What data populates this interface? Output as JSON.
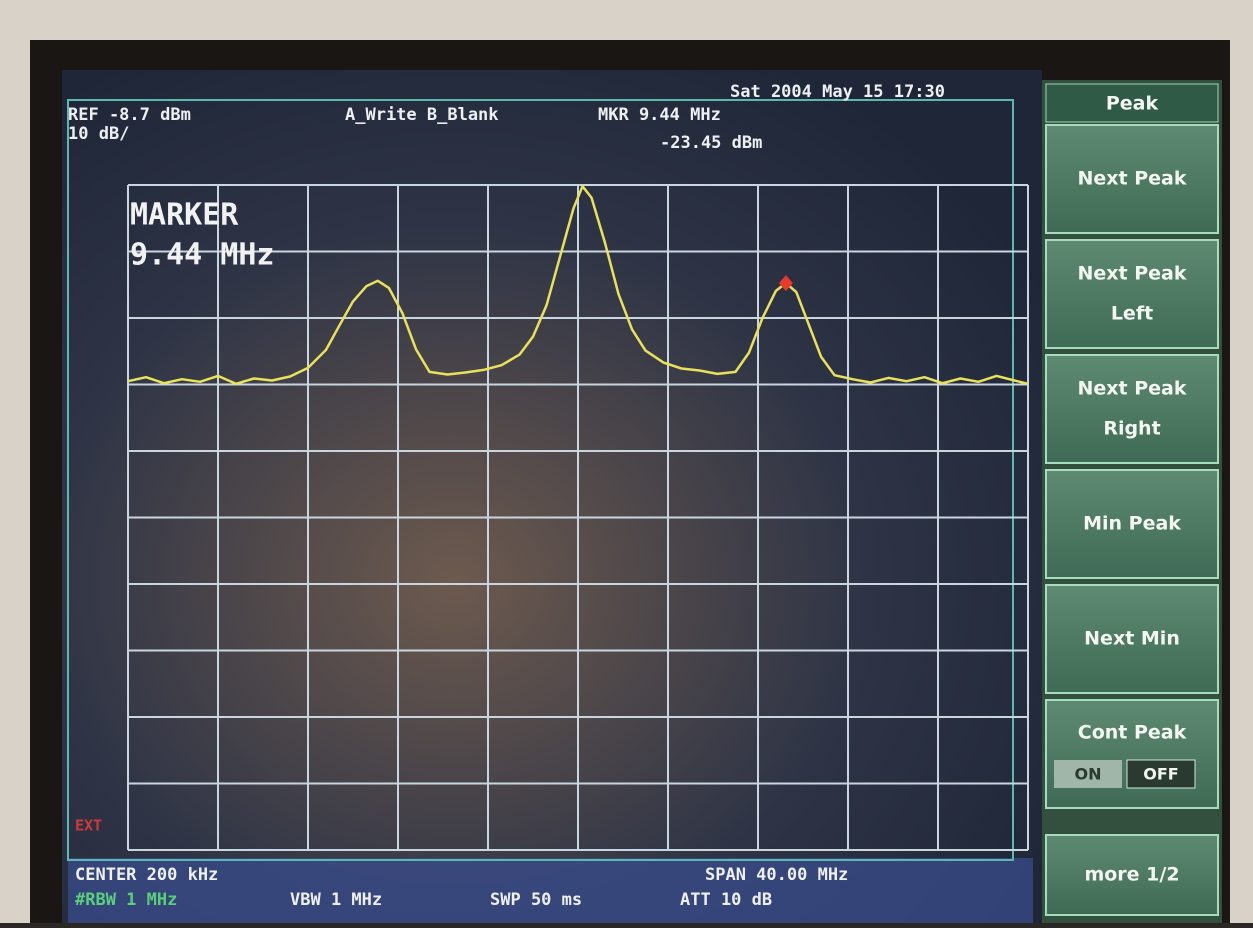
{
  "status": {
    "datetime": "Sat 2004 May 15 17:30",
    "ref": "REF -8.7 dBm",
    "scale": "10 dB/",
    "traces": "A_Write B_Blank",
    "marker_freq": "MKR 9.44 MHz",
    "marker_level": "-23.45 dBm"
  },
  "display": {
    "marker_title": "MARKER",
    "marker_text": "9.44 MHz",
    "ext": "EXT",
    "xlim": [
      -19.8,
      20.2
    ],
    "ylim": [
      -108.7,
      -8.7
    ],
    "xticks": [
      -19.8,
      -15.8,
      -11.8,
      -7.8,
      -3.8,
      0.2,
      4.2,
      8.2,
      12.2,
      16.2,
      20.2
    ],
    "yticks": [
      -108.7,
      -98.7,
      -88.7,
      -78.7,
      -68.7,
      -58.7,
      -48.7,
      -38.7,
      -28.7,
      -18.7,
      -8.7
    ],
    "trace": {
      "color": "#e9e15a",
      "x": [
        -19.8,
        -19,
        -18.2,
        -17.4,
        -16.6,
        -15.8,
        -15,
        -14.2,
        -13.4,
        -12.6,
        -11.8,
        -11,
        -10.4,
        -9.8,
        -9.2,
        -8.7,
        -8.2,
        -7.6,
        -7,
        -6.4,
        -5.6,
        -4.8,
        -4,
        -3.2,
        -2.4,
        -1.8,
        -1.2,
        -0.6,
        0,
        0.4,
        0.8,
        1.4,
        2,
        2.6,
        3.2,
        4,
        4.8,
        5.6,
        6.4,
        7.2,
        7.8,
        8.4,
        9,
        9.44,
        9.9,
        10.4,
        11,
        11.6,
        12.4,
        13.2,
        14,
        14.8,
        15.6,
        16.4,
        17.2,
        18,
        18.8,
        19.6,
        20.2
      ],
      "values": [
        -38.2,
        -37.6,
        -38.5,
        -37.9,
        -38.3,
        -37.4,
        -38.6,
        -37.8,
        -38.1,
        -37.5,
        -36.2,
        -33.5,
        -29.8,
        -26.2,
        -23.9,
        -23.1,
        -24.2,
        -28,
        -33.4,
        -36.8,
        -37.2,
        -36.9,
        -36.5,
        -35.8,
        -34.2,
        -31.5,
        -26.8,
        -19.5,
        -12.2,
        -8.9,
        -10.6,
        -17.4,
        -25.1,
        -30.4,
        -33.6,
        -35.4,
        -36.3,
        -36.6,
        -37.1,
        -36.8,
        -33.9,
        -28.7,
        -24.6,
        -23.45,
        -24.8,
        -29.2,
        -34.5,
        -37.3,
        -37.9,
        -38.4,
        -37.7,
        -38.2,
        -37.6,
        -38.5,
        -37.8,
        -38.3,
        -37.4,
        -38.1,
        -38.6
      ]
    },
    "marker": {
      "x": 9.44,
      "value": -23.45,
      "color": "#e83a2a"
    }
  },
  "footer": {
    "center": "CENTER 200 kHz",
    "span": "SPAN 40.00 MHz",
    "rbw": "#RBW 1 MHz",
    "vbw": "VBW 1 MHz",
    "swp": "SWP 50 ms",
    "att": "ATT 10 dB"
  },
  "menu": {
    "title": "Peak",
    "buttons": [
      [
        "Next Peak"
      ],
      [
        "Next Peak",
        "Left"
      ],
      [
        "Next Peak",
        "Right"
      ],
      [
        "Min Peak"
      ],
      [
        "Next Min"
      ]
    ],
    "cont_peak": {
      "label": "Cont Peak",
      "on": "ON",
      "off": "OFF"
    },
    "more": "more 1/2"
  }
}
